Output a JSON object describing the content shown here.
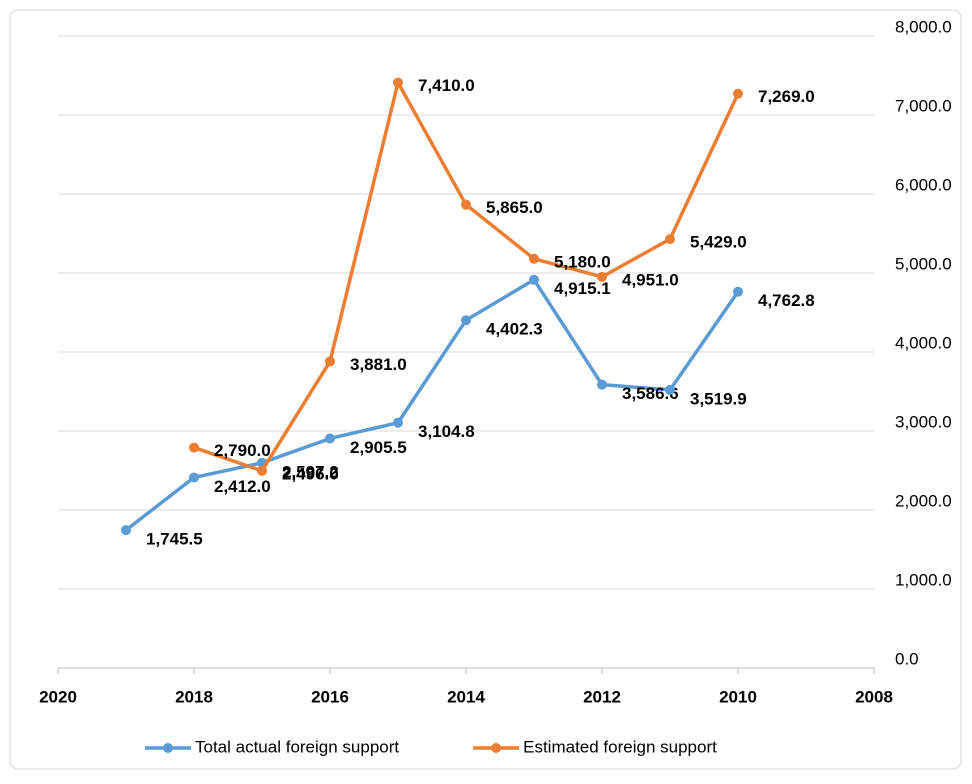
{
  "chart_data": {
    "type": "line",
    "x": [
      2019,
      2018,
      2017,
      2016,
      2015,
      2014,
      2013,
      2012,
      2011,
      2010
    ],
    "xlim": [
      2020,
      2008
    ],
    "xticks": [
      2020,
      2018,
      2016,
      2014,
      2012,
      2010,
      2008
    ],
    "ylim": [
      0,
      8000
    ],
    "yticks": [
      {
        "value": 0,
        "label": "0.0"
      },
      {
        "value": 1000,
        "label": "1,000.0"
      },
      {
        "value": 2000,
        "label": "2,000.0"
      },
      {
        "value": 3000,
        "label": "3,000.0"
      },
      {
        "value": 4000,
        "label": "4,000.0"
      },
      {
        "value": 5000,
        "label": "5,000.0"
      },
      {
        "value": 6000,
        "label": "6,000.0"
      },
      {
        "value": 7000,
        "label": "7,000.0"
      },
      {
        "value": 8000,
        "label": "8,000.0"
      }
    ],
    "grid": true,
    "legend": "bottom",
    "series": [
      {
        "name": "Total actual foreign support",
        "color": "#5b9bd5",
        "values": [
          1745.5,
          2412.0,
          2597.2,
          2905.5,
          3104.8,
          4402.3,
          4915.1,
          3586.6,
          3519.9,
          4762.8
        ],
        "value_labels": [
          "1,745.5",
          "2,412.0",
          "2,597.2",
          "2,905.5",
          "3,104.8",
          "4,402.3",
          "4,915.1",
          "3,586.6",
          "3,519.9",
          "4,762.8"
        ]
      },
      {
        "name": "Estimated foreign support",
        "color": "#ed7d31",
        "values": [
          null,
          2790.0,
          2496.0,
          3881.0,
          7410.0,
          5865.0,
          5180.0,
          4951.0,
          5429.0,
          7269.0
        ],
        "value_labels": [
          null,
          "2,790.0",
          "2,496.0",
          "3,881.0",
          "7,410.0",
          "5,865.0",
          "5,180.0",
          "4,951.0",
          "5,429.0",
          "7,269.0"
        ]
      }
    ]
  }
}
